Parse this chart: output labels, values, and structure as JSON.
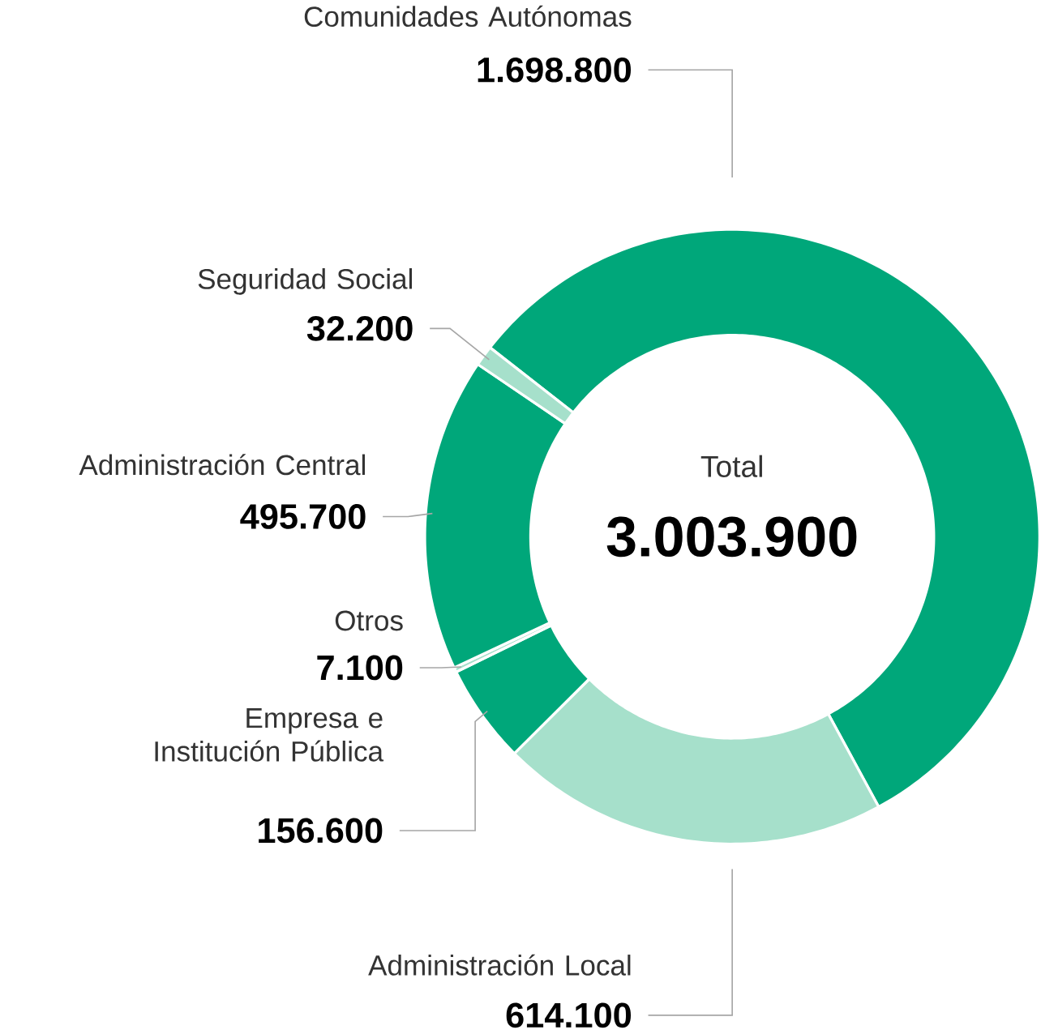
{
  "chart_data": {
    "type": "donut",
    "categories": [
      "Comunidades Autónomas",
      "Administración Local",
      "Empresa e Institución Pública",
      "Otros",
      "Administración Central",
      "Seguridad Social"
    ],
    "values": [
      1698800,
      614100,
      156600,
      7100,
      495700,
      32200
    ],
    "value_labels": [
      "1.698.800",
      "614.100",
      "156.600",
      "7.100",
      "495.700",
      "32.200"
    ],
    "colors": [
      "#00a77a",
      "#a6e0cb",
      "#00a77a",
      "#a6e0cb",
      "#00a77a",
      "#a6e0cb"
    ],
    "annotations": [
      "Total",
      "3.003.900"
    ]
  }
}
